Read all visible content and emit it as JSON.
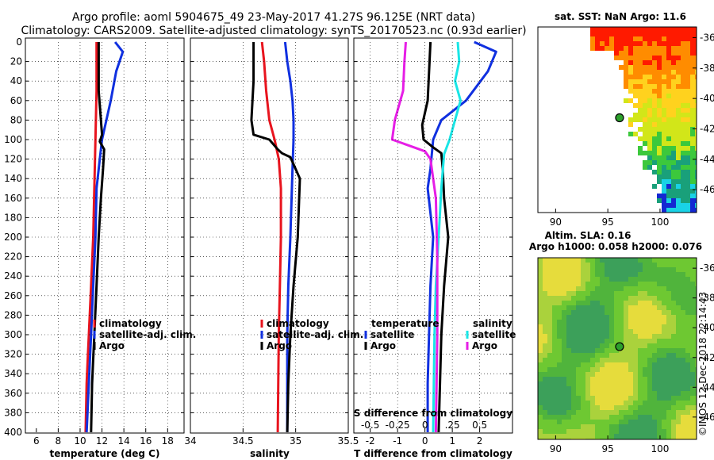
{
  "title_line1": "Argo profile: aoml 5904675_49 23-May-2017 41.27S 96.125E (NRT data)",
  "title_line2": "Climatology: CARS2009. Satellite-adjusted climatology: synTS_20170523.nc (0.93d earlier)",
  "colors": {
    "climatology": "#e8141e",
    "satellite": "#1030e0",
    "argo": "#000000",
    "sat_salinity": "#19e6e6",
    "argo_salinity": "#e61ee6"
  },
  "chart_data": [
    {
      "type": "line",
      "id": "temperature",
      "xlabel": "temperature (deg C)",
      "xlim": [
        5,
        19.5
      ],
      "ylim": [
        0,
        400
      ],
      "xticks": [
        6,
        8,
        10,
        12,
        14,
        16,
        18
      ],
      "yticks": [
        0,
        20,
        40,
        60,
        80,
        100,
        120,
        140,
        160,
        180,
        200,
        220,
        240,
        260,
        280,
        300,
        320,
        340,
        360,
        380,
        400
      ],
      "legend": [
        "climatology",
        "satellite-adj. clim.",
        "Argo"
      ],
      "series": [
        {
          "name": "climatology",
          "color": "#e8141e",
          "x": [
            11.5,
            11.5,
            11.4,
            11.3,
            11.2,
            11.0,
            10.8,
            10.6,
            10.5
          ],
          "y": [
            0,
            50,
            100,
            150,
            200,
            250,
            300,
            350,
            400
          ]
        },
        {
          "name": "satellite-adj. clim.",
          "color": "#1030e0",
          "x": [
            13.2,
            13.9,
            13.3,
            12.8,
            12.4,
            12.0,
            11.8,
            11.5,
            11.4,
            11.2,
            11.0,
            10.8,
            10.6
          ],
          "y": [
            0,
            10,
            30,
            60,
            80,
            100,
            120,
            150,
            200,
            250,
            300,
            350,
            400
          ]
        },
        {
          "name": "Argo",
          "color": "#000000",
          "x": [
            11.7,
            11.7,
            11.9,
            12.0,
            11.8,
            12.2,
            12.1,
            11.9,
            11.7,
            11.5,
            11.3,
            11.1,
            11.0
          ],
          "y": [
            0,
            50,
            80,
            95,
            102,
            110,
            130,
            160,
            200,
            250,
            300,
            350,
            400
          ]
        }
      ]
    },
    {
      "type": "line",
      "id": "salinity",
      "xlabel": "salinity",
      "xlim": [
        34,
        35.5
      ],
      "ylim": [
        0,
        400
      ],
      "xticks": [
        34,
        34.5,
        35,
        35.5
      ],
      "legend": [
        "climatology",
        "satellite-adj. clim.",
        "Argo"
      ],
      "series": [
        {
          "name": "climatology",
          "color": "#e8141e",
          "x": [
            34.68,
            34.7,
            34.72,
            34.75,
            34.8,
            34.84,
            34.86,
            34.86,
            34.85,
            34.84,
            34.83
          ],
          "y": [
            0,
            20,
            50,
            80,
            100,
            120,
            150,
            200,
            250,
            300,
            400
          ]
        },
        {
          "name": "satellite-adj. clim.",
          "color": "#1030e0",
          "x": [
            34.9,
            34.92,
            34.95,
            34.97,
            34.98,
            34.98,
            34.97,
            34.95,
            34.93,
            34.92,
            34.92
          ],
          "y": [
            0,
            20,
            40,
            60,
            80,
            100,
            130,
            200,
            250,
            300,
            400
          ]
        },
        {
          "name": "Argo",
          "color": "#000000",
          "x": [
            34.6,
            34.6,
            34.58,
            34.6,
            34.75,
            34.83,
            34.87,
            34.95,
            35.04,
            35.02,
            34.98,
            34.95,
            34.93,
            34.92
          ],
          "y": [
            0,
            40,
            80,
            95,
            100,
            110,
            114,
            118,
            140,
            200,
            250,
            300,
            350,
            400
          ]
        }
      ]
    },
    {
      "type": "line",
      "id": "differences",
      "xlabel": "T difference from climatology",
      "xlabel_top": "S difference from climatology",
      "xlim": [
        -2.6,
        3.2
      ],
      "ylim": [
        0,
        400
      ],
      "xticks_bottom": [
        -2,
        -1,
        0,
        1,
        2
      ],
      "xticks_top": [
        "-0.5",
        "-0.25",
        "0",
        ".25",
        "0.5"
      ],
      "legend_temperature": {
        "title": "temperature",
        "items": [
          "satellite",
          "Argo"
        ]
      },
      "legend_salinity": {
        "title": "salinity",
        "items": [
          "satellite",
          "Argo"
        ]
      },
      "series": [
        {
          "name": "temperature satellite",
          "color": "#1030e0",
          "x": [
            1.8,
            2.6,
            2.3,
            1.5,
            0.6,
            0.3,
            0.2,
            0.1,
            0.3,
            0.2,
            0.15,
            0.1,
            0.1
          ],
          "y": [
            0,
            10,
            30,
            60,
            80,
            100,
            130,
            150,
            200,
            250,
            300,
            350,
            400
          ]
        },
        {
          "name": "temperature Argo",
          "color": "#000000",
          "x": [
            0.2,
            0.1,
            -0.1,
            -0.05,
            0.3,
            0.6,
            0.65,
            0.7,
            0.85,
            0.7,
            0.6,
            0.55,
            0.5
          ],
          "y": [
            0,
            60,
            85,
            100,
            108,
            114,
            130,
            160,
            200,
            250,
            300,
            350,
            400
          ]
        },
        {
          "name": "salinity satellite",
          "color": "#19e6e6",
          "x": [
            1.2,
            1.25,
            1.1,
            1.3,
            1.1,
            0.9,
            0.7,
            0.6,
            0.5,
            0.4,
            0.35,
            0.3
          ],
          "y": [
            0,
            20,
            40,
            60,
            80,
            100,
            115,
            150,
            200,
            250,
            300,
            400
          ]
        },
        {
          "name": "salinity Argo",
          "color": "#e61ee6",
          "x": [
            -0.7,
            -0.75,
            -0.8,
            -1.1,
            -1.2,
            -0.4,
            0.0,
            0.2,
            0.4,
            0.45,
            0.45,
            0.4
          ],
          "y": [
            0,
            20,
            50,
            80,
            100,
            108,
            112,
            120,
            160,
            220,
            300,
            400
          ]
        }
      ]
    },
    {
      "type": "heatmap",
      "id": "sst_map",
      "title": "sat. SST: NaN Argo: 11.6",
      "xticks": [
        90,
        95,
        100
      ],
      "yticks": [
        -36,
        -38,
        -40,
        -42,
        -44,
        -46
      ],
      "xlim": [
        88.3,
        103.5
      ],
      "ylim": [
        -47.5,
        -35.3
      ],
      "argo_lon": 96.125,
      "argo_lat": -41.27
    },
    {
      "type": "heatmap",
      "id": "sla_map",
      "title_line1": "Altim. SLA: 0.16",
      "title_line2": "Argo h1000: 0.058 h2000: 0.076",
      "xticks": [
        90,
        95,
        100
      ],
      "yticks": [
        -36,
        -38,
        -40,
        -42,
        -44,
        -46
      ],
      "xlim": [
        88.3,
        103.5
      ],
      "ylim": [
        -47.5,
        -35.3
      ],
      "argo_lon": 96.125,
      "argo_lat": -41.27
    }
  ],
  "footer": "©IMOS 12-Dec-2018 22:14:43"
}
